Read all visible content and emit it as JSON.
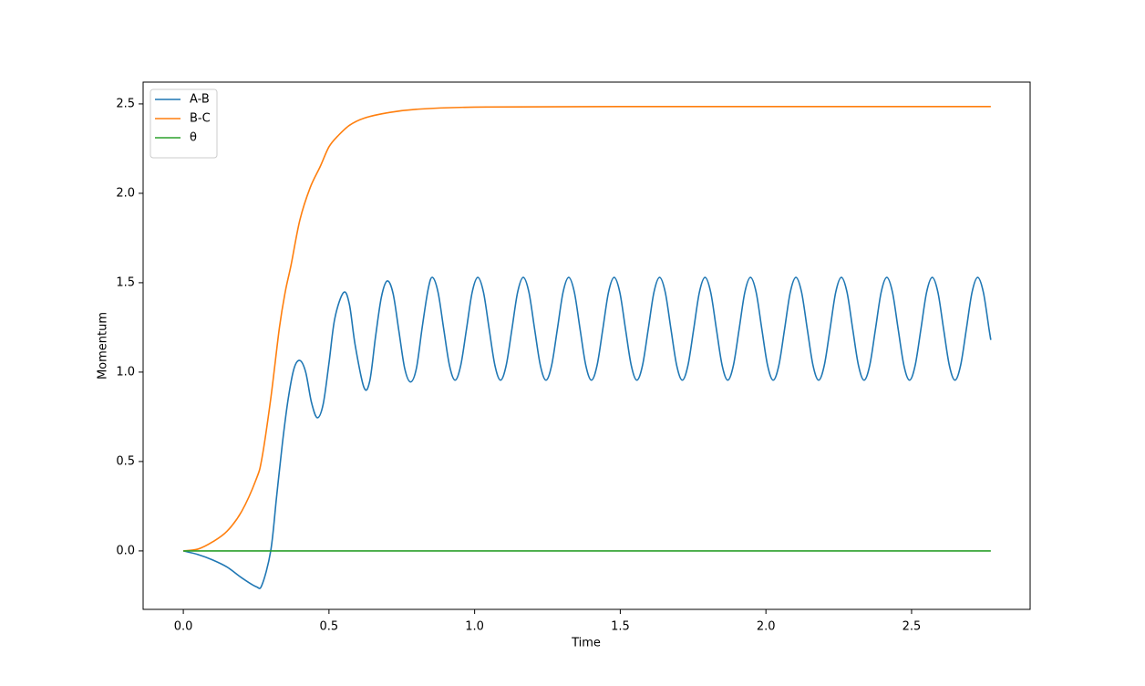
{
  "chart_data": {
    "type": "line",
    "xlabel": "Time",
    "ylabel": "Momentum",
    "xlim": [
      -0.138,
      2.907
    ],
    "ylim": [
      -0.327,
      2.622
    ],
    "xticks": [
      {
        "value": 0,
        "label": "0.0"
      },
      {
        "value": 0.5,
        "label": "0.5"
      },
      {
        "value": 1,
        "label": "1.0"
      },
      {
        "value": 1.5,
        "label": "1.5"
      },
      {
        "value": 2,
        "label": "2.0"
      },
      {
        "value": 2.5,
        "label": "2.5"
      }
    ],
    "yticks": [
      {
        "value": 0,
        "label": "0.0"
      },
      {
        "value": 0.5,
        "label": "0.5"
      },
      {
        "value": 1,
        "label": "1.0"
      },
      {
        "value": 1.5,
        "label": "1.5"
      },
      {
        "value": 2,
        "label": "2.0"
      },
      {
        "value": 2.5,
        "label": "2.5"
      }
    ],
    "grid": false,
    "legend": "upper left",
    "series": [
      {
        "name": "A-B",
        "color": "#1f77b4",
        "x": [
          0,
          0.05,
          0.1,
          0.15,
          0.2,
          0.25,
          0.27,
          0.3,
          0.32,
          0.34,
          0.36,
          0.38,
          0.4,
          0.42,
          0.44,
          0.46,
          0.48,
          0.5,
          0.52,
          0.55,
          0.57,
          0.59,
          0.62,
          0.64,
          0.66,
          0.68,
          0.7,
          0.72,
          0.74,
          0.76,
          0.78,
          0.8,
          0.82,
          0.84,
          0.855,
          0.8745,
          0.894,
          0.9135,
          0.933,
          0.9525,
          0.972,
          0.9915,
          1.011,
          1.0305,
          1.05,
          1.0695,
          1.089,
          1.1085,
          1.128,
          1.1475,
          1.167,
          1.1865,
          1.206,
          1.2255,
          1.245,
          1.2645,
          1.284,
          1.3035,
          1.323,
          1.3425,
          1.362,
          1.3815,
          1.401,
          1.4205,
          1.44,
          1.4595,
          1.479,
          1.4985,
          1.518,
          1.5375,
          1.557,
          1.5765,
          1.596,
          1.6155,
          1.635,
          1.6545,
          1.674,
          1.6935,
          1.713,
          1.7325,
          1.752,
          1.7715,
          1.791,
          1.8105,
          1.83,
          1.8495,
          1.869,
          1.8885,
          1.908,
          1.9275,
          1.947,
          1.9665,
          1.986,
          2.0055,
          2.025,
          2.0445,
          2.064,
          2.0835,
          2.103,
          2.1225,
          2.142,
          2.1615,
          2.181,
          2.2005,
          2.22,
          2.2395,
          2.259,
          2.2785,
          2.298,
          2.3175,
          2.337,
          2.3565,
          2.376,
          2.3955,
          2.415,
          2.4345,
          2.454,
          2.4735,
          2.493,
          2.5125,
          2.532,
          2.5515,
          2.571,
          2.5905,
          2.61,
          2.6295,
          2.649,
          2.6685,
          2.688,
          2.7075,
          2.727,
          2.7465,
          2.766,
          2.772
        ],
        "values": [
          0,
          -0.02,
          -0.05,
          -0.09,
          -0.15,
          -0.2,
          -0.19,
          0,
          0.3,
          0.6,
          0.85,
          1.02,
          1.065,
          1.0,
          0.83,
          0.745,
          0.82,
          1.05,
          1.3,
          1.445,
          1.38,
          1.15,
          0.915,
          0.95,
          1.2,
          1.42,
          1.51,
          1.44,
          1.23,
          1.02,
          0.945,
          1.02,
          1.25,
          1.46,
          1.53,
          1.446,
          1.24,
          1.039,
          0.955,
          1.039,
          1.24,
          1.446,
          1.53,
          1.446,
          1.24,
          1.039,
          0.955,
          1.039,
          1.24,
          1.446,
          1.53,
          1.446,
          1.24,
          1.039,
          0.955,
          1.039,
          1.24,
          1.446,
          1.53,
          1.446,
          1.24,
          1.039,
          0.955,
          1.039,
          1.24,
          1.446,
          1.53,
          1.446,
          1.24,
          1.039,
          0.955,
          1.039,
          1.24,
          1.446,
          1.53,
          1.446,
          1.24,
          1.039,
          0.955,
          1.039,
          1.24,
          1.446,
          1.53,
          1.446,
          1.24,
          1.039,
          0.955,
          1.039,
          1.24,
          1.446,
          1.53,
          1.446,
          1.24,
          1.039,
          0.955,
          1.039,
          1.24,
          1.446,
          1.53,
          1.446,
          1.24,
          1.039,
          0.955,
          1.039,
          1.24,
          1.446,
          1.53,
          1.446,
          1.24,
          1.039,
          0.955,
          1.039,
          1.24,
          1.446,
          1.53,
          1.446,
          1.24,
          1.039,
          0.955,
          1.039,
          1.24,
          1.446,
          1.53,
          1.446,
          1.24,
          1.039,
          0.955,
          1.039,
          1.24,
          1.446,
          1.53,
          1.446,
          1.24,
          1.18
        ]
      },
      {
        "name": "B-C",
        "color": "#ff7f0e",
        "x": [
          0,
          0.05,
          0.1,
          0.15,
          0.2,
          0.25,
          0.27,
          0.3,
          0.33,
          0.35,
          0.37,
          0.4,
          0.435,
          0.47,
          0.5,
          0.53,
          0.57,
          0.62,
          0.7,
          0.8,
          1.0,
          1.5,
          2.772
        ],
        "values": [
          0,
          0.01,
          0.05,
          0.11,
          0.22,
          0.4,
          0.52,
          0.85,
          1.25,
          1.45,
          1.6,
          1.85,
          2.03,
          2.15,
          2.26,
          2.32,
          2.38,
          2.42,
          2.45,
          2.47,
          2.482,
          2.485,
          2.485
        ]
      },
      {
        "name": "θ",
        "color": "#2ca02c",
        "x": [
          0,
          2.772
        ],
        "values": [
          0,
          0
        ]
      }
    ]
  }
}
